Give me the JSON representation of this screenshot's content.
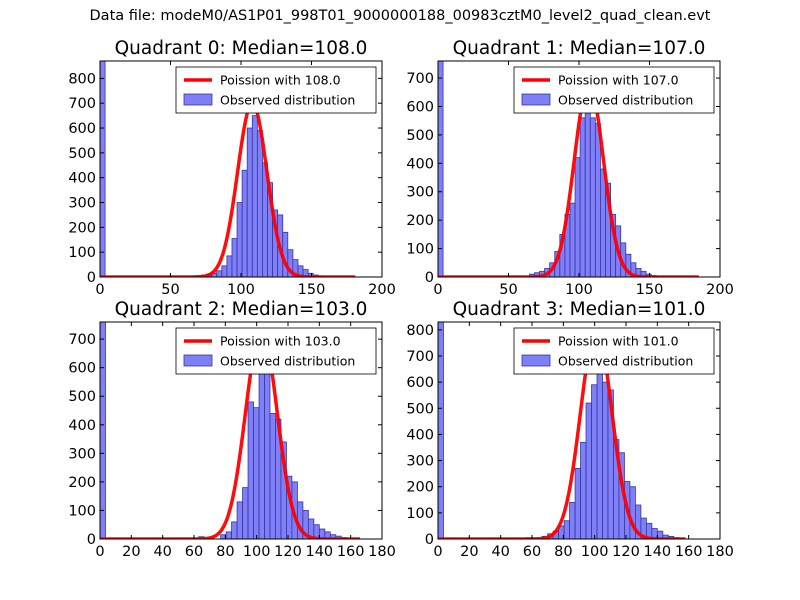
{
  "figure": {
    "suptitle": "Data file: modeM0/AS1P01_998T01_9000000188_00983cztM0_level2_quad_clean.evt",
    "colors": {
      "fit_line": "#ff0000",
      "bar_fill": "#7f7ff7",
      "bar_edge": "#3535a0"
    }
  },
  "chart_data": [
    {
      "type": "bar",
      "title": "Quadrant 0: Median=108.0",
      "xlim": [
        0,
        200
      ],
      "ylim": [
        0,
        870
      ],
      "xticks": [
        0,
        50,
        100,
        150,
        200
      ],
      "yticks": [
        0,
        100,
        200,
        300,
        400,
        500,
        600,
        700,
        800
      ],
      "legend": {
        "placement": "top-right",
        "line_label": "Poission with 108.0",
        "bar_label": "Observed distribution"
      },
      "bin_width": 3.6,
      "bins": [
        [
          0,
          870
        ],
        [
          64.8,
          3
        ],
        [
          68.4,
          5
        ],
        [
          72,
          8
        ],
        [
          75.6,
          12
        ],
        [
          79.2,
          15
        ],
        [
          82.8,
          25
        ],
        [
          86.4,
          45
        ],
        [
          90,
          85
        ],
        [
          93.6,
          155
        ],
        [
          97.2,
          300
        ],
        [
          100.8,
          430
        ],
        [
          104.4,
          600
        ],
        [
          108,
          650
        ],
        [
          111.6,
          590
        ],
        [
          115.2,
          460
        ],
        [
          118.8,
          380
        ],
        [
          122.4,
          270
        ],
        [
          126,
          250
        ],
        [
          129.6,
          180
        ],
        [
          133.2,
          110
        ],
        [
          136.8,
          70
        ],
        [
          140.4,
          45
        ],
        [
          144,
          30
        ],
        [
          147.6,
          15
        ],
        [
          151.2,
          8
        ],
        [
          154.8,
          4
        ]
      ],
      "curve": {
        "mean": 108,
        "peak": 700,
        "xmax": 181
      }
    },
    {
      "type": "bar",
      "title": "Quadrant 1: Median=107.0",
      "xlim": [
        0,
        200
      ],
      "ylim": [
        0,
        760
      ],
      "xticks": [
        0,
        50,
        100,
        150,
        200
      ],
      "yticks": [
        0,
        100,
        200,
        300,
        400,
        500,
        600,
        700
      ],
      "legend": {
        "placement": "top-right",
        "line_label": "Poission with 107.0",
        "bar_label": "Observed distribution"
      },
      "bin_width": 3.6,
      "bins": [
        [
          0,
          760
        ],
        [
          54,
          3
        ],
        [
          64.8,
          10
        ],
        [
          68.4,
          15
        ],
        [
          72,
          20
        ],
        [
          75.6,
          30
        ],
        [
          79.2,
          50
        ],
        [
          82.8,
          90
        ],
        [
          86.4,
          150
        ],
        [
          90,
          220
        ],
        [
          93.6,
          260
        ],
        [
          97.2,
          420
        ],
        [
          100.8,
          560
        ],
        [
          104.4,
          700
        ],
        [
          108,
          560
        ],
        [
          111.6,
          540
        ],
        [
          115.2,
          380
        ],
        [
          118.8,
          330
        ],
        [
          122.4,
          220
        ],
        [
          126,
          180
        ],
        [
          129.6,
          120
        ],
        [
          133.2,
          80
        ],
        [
          136.8,
          50
        ],
        [
          140.4,
          30
        ],
        [
          144,
          20
        ],
        [
          147.6,
          10
        ],
        [
          151.2,
          5
        ]
      ],
      "curve": {
        "mean": 107,
        "peak": 680,
        "xmax": 185
      }
    },
    {
      "type": "bar",
      "title": "Quadrant 2: Median=103.0",
      "xlim": [
        0,
        180
      ],
      "ylim": [
        0,
        760
      ],
      "xticks": [
        0,
        20,
        40,
        60,
        80,
        100,
        120,
        140,
        160,
        180
      ],
      "yticks": [
        0,
        100,
        200,
        300,
        400,
        500,
        600,
        700
      ],
      "legend": {
        "placement": "top-right",
        "line_label": "Poission with 103.0",
        "bar_label": "Observed distribution"
      },
      "bin_width": 3.5,
      "bins": [
        [
          0,
          760
        ],
        [
          63,
          8
        ],
        [
          77,
          15
        ],
        [
          80.5,
          25
        ],
        [
          84,
          60
        ],
        [
          87.5,
          130
        ],
        [
          91,
          180
        ],
        [
          94.5,
          480
        ],
        [
          98,
          460
        ],
        [
          101.5,
          580
        ],
        [
          105,
          580
        ],
        [
          108.5,
          440
        ],
        [
          112,
          420
        ],
        [
          115.5,
          340
        ],
        [
          119,
          220
        ],
        [
          122.5,
          200
        ],
        [
          126,
          130
        ],
        [
          129.5,
          100
        ],
        [
          133,
          70
        ],
        [
          136.5,
          50
        ],
        [
          140,
          35
        ],
        [
          143.5,
          25
        ],
        [
          147,
          15
        ],
        [
          150.5,
          10
        ],
        [
          154,
          5
        ]
      ],
      "curve": {
        "mean": 103,
        "peak": 730,
        "xmax": 166
      }
    },
    {
      "type": "bar",
      "title": "Quadrant 3: Median=101.0",
      "xlim": [
        0,
        180
      ],
      "ylim": [
        0,
        830
      ],
      "xticks": [
        0,
        20,
        40,
        60,
        80,
        100,
        120,
        140,
        160,
        180
      ],
      "yticks": [
        0,
        100,
        200,
        300,
        400,
        500,
        600,
        700,
        800
      ],
      "legend": {
        "placement": "top-right",
        "line_label": "Poission with 101.0",
        "bar_label": "Observed distribution"
      },
      "bin_width": 3.5,
      "bins": [
        [
          0,
          830
        ],
        [
          56,
          5
        ],
        [
          66.5,
          10
        ],
        [
          70,
          20
        ],
        [
          73.5,
          30
        ],
        [
          77,
          50
        ],
        [
          80.5,
          70
        ],
        [
          84,
          140
        ],
        [
          87.5,
          270
        ],
        [
          91,
          370
        ],
        [
          94.5,
          520
        ],
        [
          98,
          590
        ],
        [
          101.5,
          750
        ],
        [
          105,
          600
        ],
        [
          108.5,
          570
        ],
        [
          112,
          380
        ],
        [
          115.5,
          330
        ],
        [
          119,
          220
        ],
        [
          122.5,
          200
        ],
        [
          126,
          130
        ],
        [
          129.5,
          80
        ],
        [
          133,
          60
        ],
        [
          136.5,
          40
        ],
        [
          140,
          30
        ],
        [
          143.5,
          15
        ],
        [
          147,
          10
        ],
        [
          150.5,
          5
        ]
      ],
      "curve": {
        "mean": 101,
        "peak": 800,
        "xmax": 158
      }
    }
  ]
}
